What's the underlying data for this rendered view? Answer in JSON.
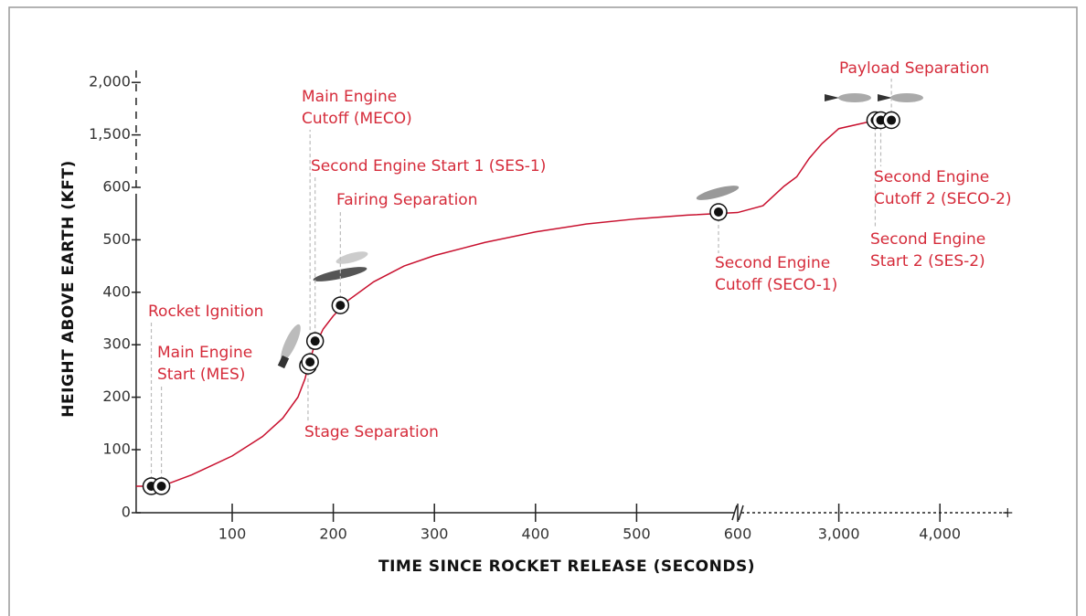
{
  "chart_data": {
    "type": "line",
    "xlabel": "TIME SINCE ROCKET RELEASE (SECONDS)",
    "ylabel": "HEIGHT ABOVE EARTH (KFT)",
    "x": [
      5,
      30,
      60,
      100,
      130,
      150,
      165,
      172,
      176,
      180,
      190,
      200,
      215,
      240,
      270,
      300,
      350,
      400,
      450,
      500,
      550,
      600,
      1200,
      1700,
      2000,
      2300,
      2600,
      3000,
      3300,
      3520
    ],
    "series": [
      {
        "color": "#c8102e",
        "values": [
          42,
          42,
          60,
          90,
          125,
          160,
          200,
          235,
          265,
          290,
          330,
          355,
          385,
          420,
          450,
          470,
          495,
          515,
          530,
          540,
          547,
          552,
          565,
          620,
          780,
          1100,
          1350,
          1560,
          1625,
          1640
        ]
      }
    ],
    "events": [
      {
        "label": [
          "Rocket Ignition"
        ],
        "x": 20,
        "y": 42
      },
      {
        "label": [
          "Main Engine",
          "Start (MES)"
        ],
        "x": 30,
        "y": 42
      },
      {
        "label": [
          "Stage Separation"
        ],
        "x": 175,
        "y": 260
      },
      {
        "label": [
          "Main Engine",
          "Cutoff (MECO)"
        ],
        "x": 177,
        "y": 267
      },
      {
        "label": [
          "Second Engine Start 1 (SES-1)"
        ],
        "x": 182,
        "y": 307
      },
      {
        "label": [
          "Fairing Separation"
        ],
        "x": 207,
        "y": 375
      },
      {
        "label": [
          "Second Engine",
          "Cutoff (SECO-1)"
        ],
        "x": 581,
        "y": 553
      },
      {
        "label": [
          "Second Engine",
          "Start 2 (SES-2)"
        ],
        "x": 3360,
        "y": 1640
      },
      {
        "label": [
          "Second Engine",
          "Cutoff 2 (SECO-2)"
        ],
        "x": 3415,
        "y": 1640
      },
      {
        "label": [
          "Payload Separation"
        ],
        "x": 3520,
        "y": 1640
      }
    ],
    "xlim": [
      5,
      4670
    ],
    "xticks": [
      100,
      200,
      300,
      400,
      500,
      600,
      {
        "value": 3000,
        "label": "3,000"
      },
      {
        "value": 4000,
        "label": "4,000"
      }
    ],
    "ylim": [
      0,
      2175
    ],
    "yticks": [
      0,
      100,
      200,
      300,
      400,
      500,
      600,
      {
        "value": 1500,
        "label": "1,500"
      },
      {
        "value": 2000,
        "label": "2,000"
      }
    ]
  }
}
